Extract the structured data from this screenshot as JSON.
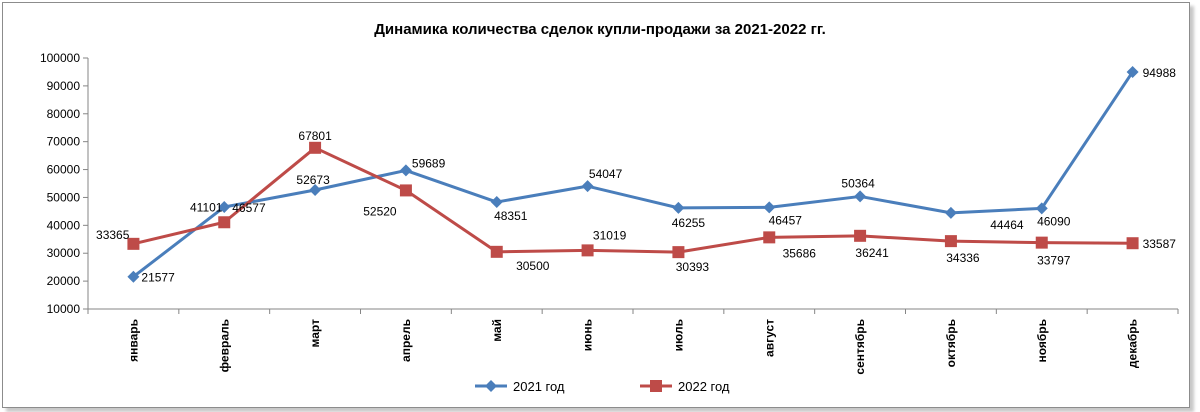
{
  "chart_data": {
    "type": "line",
    "title": "Динамика количества сделок купли-продажи  за 2021-2022 гг.",
    "xlabel": "",
    "ylabel": "",
    "ylim": [
      10000,
      100000
    ],
    "ytick_step": 10000,
    "yticks": [
      "10000",
      "20000",
      "30000",
      "40000",
      "50000",
      "60000",
      "70000",
      "80000",
      "90000",
      "100000"
    ],
    "grid": false,
    "legend_position": "bottom",
    "categories": [
      "январь",
      "февраль",
      "март",
      "апрель",
      "май",
      "июнь",
      "июль",
      "август",
      "сентябрь",
      "октябрь",
      "ноябрь",
      "декабрь"
    ],
    "series": [
      {
        "name": "2021 год",
        "color": "#4a7ebb",
        "marker": "diamond",
        "values": [
          21577,
          46577,
          52673,
          59689,
          48351,
          54047,
          46255,
          46457,
          50364,
          44464,
          46090,
          94988
        ],
        "labels": [
          "21577",
          "46577",
          "52673",
          "59689",
          "48351",
          "54047",
          "46255",
          "46457",
          "50364",
          "44464",
          "46090",
          "94988"
        ]
      },
      {
        "name": "2022 год",
        "color": "#be4b48",
        "marker": "square",
        "values": [
          33365,
          41101,
          67801,
          52520,
          30500,
          31019,
          30393,
          35686,
          36241,
          34336,
          33797,
          33587
        ],
        "labels": [
          "33365",
          "41101",
          "67801",
          "52520",
          "30500",
          "31019",
          "30393",
          "35686",
          "36241",
          "34336",
          "33797",
          "33587"
        ]
      }
    ]
  }
}
